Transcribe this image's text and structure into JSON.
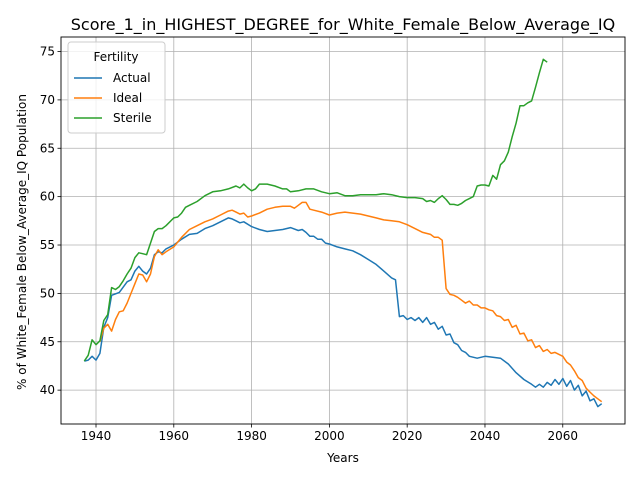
{
  "chart_data": {
    "type": "line",
    "title": "Score_1_in_HIGHEST_DEGREE_for_White_Female_Below_Average_IQ",
    "xlabel": "Years",
    "ylabel": "% of White_Female Below_Average_IQ Population",
    "xlim": [
      1931,
      2076
    ],
    "ylim": [
      36.5,
      76.5
    ],
    "xticks": [
      1940,
      1960,
      1980,
      2000,
      2020,
      2040,
      2060
    ],
    "yticks": [
      40,
      45,
      50,
      55,
      60,
      65,
      70,
      75
    ],
    "grid": true,
    "legend": {
      "title": "Fertility",
      "placement": "upper-left"
    },
    "series": [
      {
        "name": "Actual",
        "color": "#1f77b4",
        "points": [
          [
            1937,
            43.0
          ],
          [
            1938,
            43.1
          ],
          [
            1939,
            43.5
          ],
          [
            1940,
            43.1
          ],
          [
            1941,
            43.8
          ],
          [
            1942,
            46.5
          ],
          [
            1943,
            47.5
          ],
          [
            1944,
            49.8
          ],
          [
            1946,
            50.1
          ],
          [
            1948,
            51.2
          ],
          [
            1949,
            51.4
          ],
          [
            1950,
            52.3
          ],
          [
            1951,
            52.8
          ],
          [
            1952,
            52.3
          ],
          [
            1953,
            52.0
          ],
          [
            1954,
            52.6
          ],
          [
            1955,
            54.0
          ],
          [
            1956,
            54.3
          ],
          [
            1957,
            54.2
          ],
          [
            1958,
            54.6
          ],
          [
            1960,
            55.0
          ],
          [
            1962,
            55.6
          ],
          [
            1964,
            56.1
          ],
          [
            1966,
            56.2
          ],
          [
            1968,
            56.7
          ],
          [
            1970,
            57.0
          ],
          [
            1972,
            57.4
          ],
          [
            1974,
            57.8
          ],
          [
            1975,
            57.7
          ],
          [
            1976,
            57.5
          ],
          [
            1977,
            57.3
          ],
          [
            1978,
            57.4
          ],
          [
            1980,
            56.9
          ],
          [
            1982,
            56.6
          ],
          [
            1984,
            56.4
          ],
          [
            1986,
            56.5
          ],
          [
            1988,
            56.6
          ],
          [
            1990,
            56.8
          ],
          [
            1992,
            56.5
          ],
          [
            1993,
            56.6
          ],
          [
            1994,
            56.3
          ],
          [
            1995,
            55.9
          ],
          [
            1996,
            55.9
          ],
          [
            1997,
            55.6
          ],
          [
            1998,
            55.6
          ],
          [
            1999,
            55.2
          ],
          [
            2000,
            55.1
          ],
          [
            2002,
            54.8
          ],
          [
            2004,
            54.6
          ],
          [
            2006,
            54.4
          ],
          [
            2008,
            54.0
          ],
          [
            2010,
            53.5
          ],
          [
            2012,
            53.0
          ],
          [
            2014,
            52.3
          ],
          [
            2016,
            51.6
          ],
          [
            2017,
            51.4
          ],
          [
            2018,
            47.6
          ],
          [
            2019,
            47.7
          ],
          [
            2020,
            47.3
          ],
          [
            2021,
            47.5
          ],
          [
            2022,
            47.2
          ],
          [
            2023,
            47.5
          ],
          [
            2024,
            47.0
          ],
          [
            2025,
            47.5
          ],
          [
            2026,
            46.8
          ],
          [
            2027,
            47.0
          ],
          [
            2028,
            46.3
          ],
          [
            2029,
            46.6
          ],
          [
            2030,
            45.7
          ],
          [
            2031,
            45.8
          ],
          [
            2032,
            44.9
          ],
          [
            2033,
            44.7
          ],
          [
            2034,
            44.1
          ],
          [
            2035,
            43.9
          ],
          [
            2036,
            43.5
          ],
          [
            2038,
            43.3
          ],
          [
            2040,
            43.5
          ],
          [
            2042,
            43.4
          ],
          [
            2044,
            43.3
          ],
          [
            2046,
            42.7
          ],
          [
            2048,
            41.8
          ],
          [
            2050,
            41.1
          ],
          [
            2052,
            40.6
          ],
          [
            2053,
            40.3
          ],
          [
            2054,
            40.6
          ],
          [
            2055,
            40.3
          ],
          [
            2056,
            40.8
          ],
          [
            2057,
            40.5
          ],
          [
            2058,
            41.1
          ],
          [
            2059,
            40.6
          ],
          [
            2060,
            41.2
          ],
          [
            2061,
            40.4
          ],
          [
            2062,
            41.0
          ],
          [
            2063,
            40.0
          ],
          [
            2064,
            40.5
          ],
          [
            2065,
            39.4
          ],
          [
            2066,
            39.9
          ],
          [
            2067,
            38.9
          ],
          [
            2068,
            39.1
          ],
          [
            2069,
            38.3
          ],
          [
            2070,
            38.6
          ]
        ]
      },
      {
        "name": "Ideal",
        "color": "#ff7f0e",
        "points": [
          [
            1941,
            45.0
          ],
          [
            1942,
            46.4
          ],
          [
            1943,
            46.8
          ],
          [
            1944,
            46.1
          ],
          [
            1945,
            47.3
          ],
          [
            1946,
            48.1
          ],
          [
            1947,
            48.2
          ],
          [
            1948,
            49.0
          ],
          [
            1949,
            50.0
          ],
          [
            1950,
            51.0
          ],
          [
            1951,
            52.0
          ],
          [
            1952,
            51.9
          ],
          [
            1953,
            51.2
          ],
          [
            1954,
            52.0
          ],
          [
            1955,
            53.8
          ],
          [
            1956,
            54.5
          ],
          [
            1957,
            54.0
          ],
          [
            1958,
            54.3
          ],
          [
            1960,
            54.8
          ],
          [
            1962,
            55.8
          ],
          [
            1964,
            56.6
          ],
          [
            1966,
            57.0
          ],
          [
            1968,
            57.4
          ],
          [
            1970,
            57.7
          ],
          [
            1972,
            58.1
          ],
          [
            1974,
            58.5
          ],
          [
            1975,
            58.6
          ],
          [
            1976,
            58.4
          ],
          [
            1977,
            58.2
          ],
          [
            1978,
            58.3
          ],
          [
            1979,
            57.9
          ],
          [
            1980,
            58.0
          ],
          [
            1982,
            58.3
          ],
          [
            1984,
            58.7
          ],
          [
            1986,
            58.9
          ],
          [
            1988,
            59.0
          ],
          [
            1990,
            59.0
          ],
          [
            1991,
            58.8
          ],
          [
            1992,
            59.1
          ],
          [
            1993,
            59.4
          ],
          [
            1994,
            59.4
          ],
          [
            1995,
            58.7
          ],
          [
            1996,
            58.6
          ],
          [
            1998,
            58.4
          ],
          [
            2000,
            58.1
          ],
          [
            2002,
            58.3
          ],
          [
            2004,
            58.4
          ],
          [
            2006,
            58.3
          ],
          [
            2008,
            58.2
          ],
          [
            2010,
            58.0
          ],
          [
            2012,
            57.8
          ],
          [
            2014,
            57.6
          ],
          [
            2016,
            57.5
          ],
          [
            2018,
            57.4
          ],
          [
            2020,
            57.1
          ],
          [
            2022,
            56.7
          ],
          [
            2024,
            56.3
          ],
          [
            2026,
            56.1
          ],
          [
            2027,
            55.8
          ],
          [
            2028,
            55.8
          ],
          [
            2029,
            55.5
          ],
          [
            2030,
            50.5
          ],
          [
            2031,
            49.9
          ],
          [
            2032,
            49.8
          ],
          [
            2033,
            49.6
          ],
          [
            2034,
            49.3
          ],
          [
            2035,
            49.0
          ],
          [
            2036,
            49.2
          ],
          [
            2037,
            48.8
          ],
          [
            2038,
            48.8
          ],
          [
            2039,
            48.5
          ],
          [
            2040,
            48.5
          ],
          [
            2041,
            48.3
          ],
          [
            2042,
            48.2
          ],
          [
            2043,
            47.7
          ],
          [
            2044,
            47.6
          ],
          [
            2045,
            47.2
          ],
          [
            2046,
            47.3
          ],
          [
            2047,
            46.5
          ],
          [
            2048,
            46.7
          ],
          [
            2049,
            45.8
          ],
          [
            2050,
            45.9
          ],
          [
            2051,
            45.1
          ],
          [
            2052,
            45.2
          ],
          [
            2053,
            44.4
          ],
          [
            2054,
            44.6
          ],
          [
            2055,
            44.0
          ],
          [
            2056,
            44.2
          ],
          [
            2057,
            43.8
          ],
          [
            2058,
            43.9
          ],
          [
            2060,
            43.5
          ],
          [
            2061,
            42.9
          ],
          [
            2062,
            42.6
          ],
          [
            2063,
            42.0
          ],
          [
            2064,
            41.3
          ],
          [
            2065,
            41.0
          ],
          [
            2066,
            40.2
          ],
          [
            2067,
            39.8
          ],
          [
            2068,
            39.4
          ],
          [
            2069,
            39.1
          ],
          [
            2070,
            38.8
          ]
        ]
      },
      {
        "name": "Sterile",
        "color": "#2ca02c",
        "points": [
          [
            1937,
            43.0
          ],
          [
            1938,
            43.6
          ],
          [
            1939,
            45.2
          ],
          [
            1940,
            44.7
          ],
          [
            1941,
            45.1
          ],
          [
            1942,
            47.2
          ],
          [
            1943,
            47.8
          ],
          [
            1944,
            50.6
          ],
          [
            1945,
            50.4
          ],
          [
            1946,
            50.7
          ],
          [
            1947,
            51.3
          ],
          [
            1948,
            52.0
          ],
          [
            1949,
            52.6
          ],
          [
            1950,
            53.7
          ],
          [
            1951,
            54.2
          ],
          [
            1952,
            54.1
          ],
          [
            1953,
            54.0
          ],
          [
            1954,
            55.2
          ],
          [
            1955,
            56.4
          ],
          [
            1956,
            56.7
          ],
          [
            1957,
            56.7
          ],
          [
            1958,
            57.0
          ],
          [
            1960,
            57.8
          ],
          [
            1961,
            57.9
          ],
          [
            1962,
            58.3
          ],
          [
            1963,
            58.9
          ],
          [
            1964,
            59.1
          ],
          [
            1966,
            59.5
          ],
          [
            1968,
            60.1
          ],
          [
            1970,
            60.5
          ],
          [
            1972,
            60.6
          ],
          [
            1974,
            60.8
          ],
          [
            1976,
            61.1
          ],
          [
            1977,
            60.9
          ],
          [
            1978,
            61.3
          ],
          [
            1979,
            60.9
          ],
          [
            1980,
            60.6
          ],
          [
            1981,
            60.8
          ],
          [
            1982,
            61.3
          ],
          [
            1984,
            61.3
          ],
          [
            1986,
            61.1
          ],
          [
            1988,
            60.8
          ],
          [
            1989,
            60.8
          ],
          [
            1990,
            60.5
          ],
          [
            1992,
            60.6
          ],
          [
            1994,
            60.8
          ],
          [
            1996,
            60.8
          ],
          [
            1998,
            60.5
          ],
          [
            2000,
            60.3
          ],
          [
            2002,
            60.4
          ],
          [
            2004,
            60.1
          ],
          [
            2006,
            60.1
          ],
          [
            2008,
            60.2
          ],
          [
            2010,
            60.2
          ],
          [
            2012,
            60.2
          ],
          [
            2014,
            60.3
          ],
          [
            2016,
            60.2
          ],
          [
            2018,
            60.0
          ],
          [
            2020,
            59.9
          ],
          [
            2022,
            59.9
          ],
          [
            2024,
            59.8
          ],
          [
            2025,
            59.5
          ],
          [
            2026,
            59.6
          ],
          [
            2027,
            59.4
          ],
          [
            2028,
            59.8
          ],
          [
            2029,
            60.1
          ],
          [
            2030,
            59.7
          ],
          [
            2031,
            59.2
          ],
          [
            2032,
            59.2
          ],
          [
            2033,
            59.1
          ],
          [
            2034,
            59.3
          ],
          [
            2035,
            59.6
          ],
          [
            2036,
            59.8
          ],
          [
            2037,
            60.0
          ],
          [
            2038,
            61.1
          ],
          [
            2039,
            61.2
          ],
          [
            2040,
            61.2
          ],
          [
            2041,
            61.1
          ],
          [
            2042,
            62.2
          ],
          [
            2043,
            61.8
          ],
          [
            2044,
            63.3
          ],
          [
            2045,
            63.7
          ],
          [
            2046,
            64.6
          ],
          [
            2047,
            66.2
          ],
          [
            2048,
            67.6
          ],
          [
            2049,
            69.4
          ],
          [
            2050,
            69.4
          ],
          [
            2051,
            69.7
          ],
          [
            2052,
            69.9
          ],
          [
            2053,
            71.3
          ],
          [
            2054,
            72.8
          ],
          [
            2055,
            74.2
          ],
          [
            2056,
            73.9
          ]
        ]
      }
    ]
  }
}
